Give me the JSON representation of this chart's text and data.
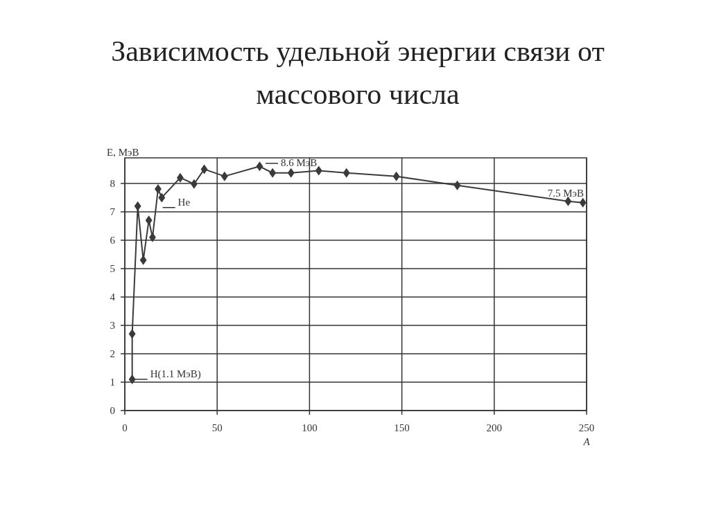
{
  "chart_data": {
    "type": "line",
    "title": "Зависимость удельной энергии связи от массового числа",
    "xlabel": "A",
    "ylabel": "E, МэВ",
    "x": [
      4,
      4,
      7,
      10,
      13,
      15,
      18,
      20,
      30,
      37.5,
      43,
      54,
      73,
      80,
      90,
      105,
      120,
      147,
      180,
      240,
      248
    ],
    "series": [
      {
        "color": "#3a3a3a",
        "values": [
          1.1,
          2.7,
          7.2,
          5.3,
          6.7,
          6.1,
          7.8,
          7.5,
          8.2,
          7.98,
          8.5,
          8.25,
          8.6,
          8.37,
          8.37,
          8.45,
          8.37,
          8.25,
          7.93,
          7.37,
          7.32
        ]
      }
    ],
    "xlim": [
      0,
      250
    ],
    "xticks": [
      0,
      50,
      100,
      150,
      200,
      250
    ],
    "ylim": [
      0,
      8.9
    ],
    "yticks": [
      0,
      1,
      2,
      3,
      4,
      5,
      6,
      7,
      8
    ],
    "grid": true,
    "marker": "diamond",
    "line_style": "solid",
    "annotations": [
      {
        "text": "H(1.1 МэВ)",
        "x": 4,
        "y": 1.1
      },
      {
        "text": "He",
        "x": 19,
        "y": 7.15
      },
      "8.6 МэВ",
      "7.5 МэВ"
    ]
  }
}
